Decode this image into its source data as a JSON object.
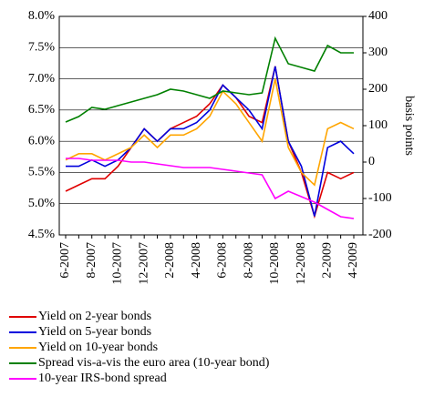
{
  "chart_data": {
    "type": "line",
    "y2label": "basis points",
    "categories": [
      "6-2007",
      null,
      "8-2007",
      null,
      "10-2007",
      null,
      "12-2007",
      null,
      "2-2008",
      null,
      "4-2008",
      null,
      "6-2008",
      null,
      "8-2008",
      null,
      "10-2008",
      null,
      "12-2008",
      null,
      "2-2009",
      null,
      "4-2009"
    ],
    "series": [
      {
        "name": "Yield on 2-year bonds",
        "color": "#e00000",
        "values": [
          5.2,
          5.3,
          5.4,
          5.4,
          5.6,
          5.9,
          6.2,
          6.0,
          6.2,
          6.3,
          6.4,
          6.6,
          6.9,
          6.7,
          6.4,
          6.3,
          7.2,
          6.0,
          5.5,
          4.8,
          5.5,
          5.4,
          5.5
        ]
      },
      {
        "name": "Yield on 5-year bonds",
        "color": "#0000dd",
        "values": [
          5.6,
          5.6,
          5.7,
          5.6,
          5.7,
          5.9,
          6.2,
          6.0,
          6.2,
          6.2,
          6.3,
          6.5,
          6.9,
          6.7,
          6.5,
          6.2,
          7.2,
          6.0,
          5.6,
          4.8,
          5.9,
          6.0,
          5.8
        ]
      },
      {
        "name": "Yield on 10-year bonds",
        "color": "#ffa500",
        "values": [
          5.7,
          5.8,
          5.8,
          5.7,
          5.8,
          5.9,
          6.1,
          5.9,
          6.1,
          6.1,
          6.2,
          6.4,
          6.8,
          6.6,
          6.3,
          6.0,
          7.0,
          5.9,
          5.5,
          5.3,
          6.2,
          6.3,
          6.2
        ]
      },
      {
        "name": "Spread vis-a-vis the euro area (10-year bond)",
        "color": "#008000",
        "axis": "y2",
        "values": [
          110,
          125,
          150,
          145,
          155,
          165,
          175,
          185,
          200,
          195,
          185,
          175,
          195,
          190,
          185,
          190,
          340,
          270,
          260,
          250,
          320,
          300,
          300
        ]
      },
      {
        "name": "10-year IRS-bond spread",
        "color": "#ff00ff",
        "axis": "y2",
        "values": [
          10,
          10,
          5,
          5,
          5,
          0,
          0,
          -5,
          -10,
          -15,
          -15,
          -15,
          -20,
          -25,
          -30,
          -35,
          -100,
          -80,
          -95,
          -110,
          -130,
          -150,
          -155
        ]
      }
    ],
    "ylim": [
      4.5,
      8.0
    ],
    "yticks": [
      {
        "value": 4.5,
        "label": "4.5%"
      },
      {
        "value": 5.0,
        "label": "5.0%"
      },
      {
        "value": 5.5,
        "label": "5.5%"
      },
      {
        "value": 6.0,
        "label": "6.0%"
      },
      {
        "value": 6.5,
        "label": "6.5%"
      },
      {
        "value": 7.0,
        "label": "7.0%"
      },
      {
        "value": 7.5,
        "label": "7.5%"
      },
      {
        "value": 8.0,
        "label": "8.0%"
      }
    ],
    "y2lim": [
      -200,
      400
    ],
    "y2ticks": [
      -200,
      -100,
      0,
      100,
      200,
      300,
      400
    ],
    "grid": true
  }
}
